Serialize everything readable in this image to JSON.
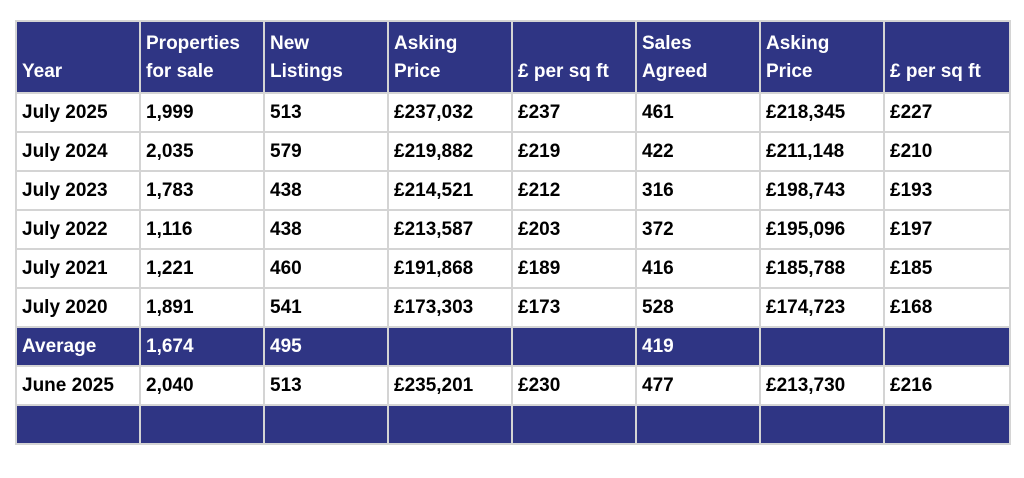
{
  "headers": [
    [
      "",
      "Year"
    ],
    [
      "Properties",
      "for sale"
    ],
    [
      "New",
      "Listings"
    ],
    [
      "Asking",
      "Price"
    ],
    [
      "",
      "£ per sq ft"
    ],
    [
      "Sales",
      "Agreed"
    ],
    [
      "Asking",
      "Price"
    ],
    [
      "",
      "£ per sq ft"
    ]
  ],
  "rows": [
    [
      "July 2025",
      "1,999",
      "513",
      "£237,032",
      "£237",
      "461",
      "£218,345",
      "£227"
    ],
    [
      "July 2024",
      "2,035",
      "579",
      "£219,882",
      "£219",
      "422",
      "£211,148",
      "£210"
    ],
    [
      "July 2023",
      "1,783",
      "438",
      "£214,521",
      "£212",
      "316",
      "£198,743",
      "£193"
    ],
    [
      "July 2022",
      "1,116",
      "438",
      "£213,587",
      "£203",
      "372",
      "£195,096",
      "£197"
    ],
    [
      "July 2021",
      "1,221",
      "460",
      "£191,868",
      "£189",
      "416",
      "£185,788",
      "£185"
    ],
    [
      "July 2020",
      "1,891",
      "541",
      "£173,303",
      "£173",
      "528",
      "£174,723",
      "£168"
    ]
  ],
  "average": [
    "Average",
    "1,674",
    "495",
    "",
    "",
    "419",
    "",
    ""
  ],
  "latest": [
    "June 2025",
    "2,040",
    "513",
    "£235,201",
    "£230",
    "477",
    "£213,730",
    "£216"
  ],
  "colors": {
    "header_bg": "#2f3584",
    "header_text": "#ffffff",
    "grid": "#d4d4d4"
  }
}
